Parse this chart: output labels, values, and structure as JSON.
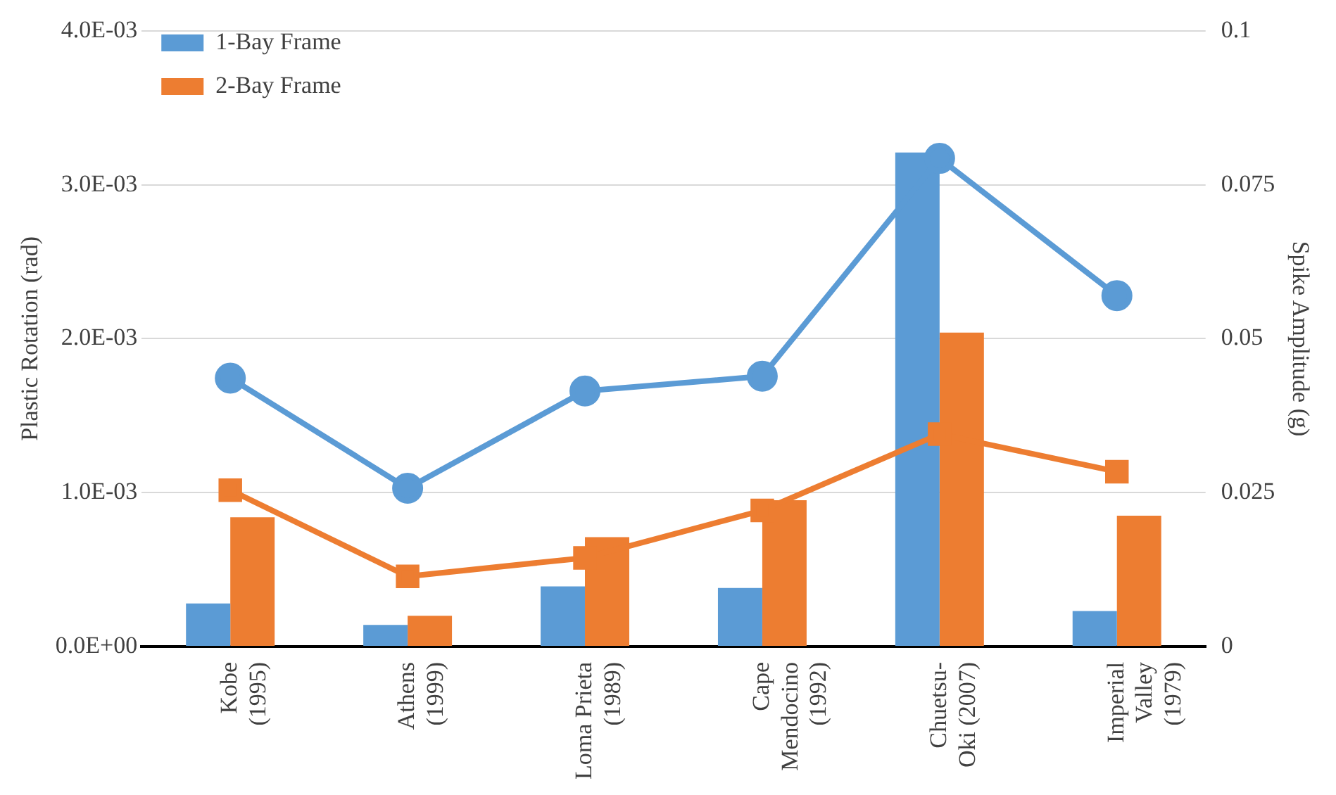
{
  "chart_data": {
    "type": "bar",
    "ylabel": "Plastic Rotation (rad)",
    "y2label": "Spike Amplitude (g)",
    "categories": [
      "Kobe\n(1995)",
      "Athens\n(1999)",
      "Loma Prieta\n(1989)",
      "Cape\nMendocino\n(1992)",
      "Chuetsu-\nOki (2007)",
      "Imperial\nValley\n(1979)"
    ],
    "series": [
      {
        "name": "1-Bay Frame",
        "color": "#5b9bd5",
        "values": [
          0.00028,
          0.00014,
          0.00039,
          0.00038,
          0.00321,
          0.00023
        ]
      },
      {
        "name": "2-Bay Frame",
        "color": "#ed7d31",
        "values": [
          0.00084,
          0.0002,
          0.00071,
          0.00095,
          0.00204,
          0.00085
        ]
      },
      {
        "type": "line",
        "axis": "y2",
        "marker": "circle",
        "line_style": "solid",
        "color": "#5b9bd5",
        "values": [
          0.0436,
          0.0257,
          0.0415,
          0.0439,
          0.0793,
          0.057
        ]
      },
      {
        "type": "line",
        "axis": "y2",
        "marker": "square",
        "line_style": "solid",
        "color": "#ed7d31",
        "values": [
          0.0254,
          0.0114,
          0.0144,
          0.0221,
          0.0345,
          0.0284
        ]
      }
    ],
    "ylim": [
      0,
      0.004
    ],
    "yticks": [
      {
        "value": 0,
        "label": "0.0E+00"
      },
      {
        "value": 0.001,
        "label": "1.0E-03"
      },
      {
        "value": 0.002,
        "label": "2.0E-03"
      },
      {
        "value": 0.003,
        "label": "3.0E-03"
      },
      {
        "value": 0.004,
        "label": "4.0E-03"
      }
    ],
    "y2lim": [
      0,
      0.1
    ],
    "y2ticks": [
      0,
      0.025,
      0.05,
      0.075,
      0.1
    ],
    "grid": "y",
    "legend": "top left"
  }
}
